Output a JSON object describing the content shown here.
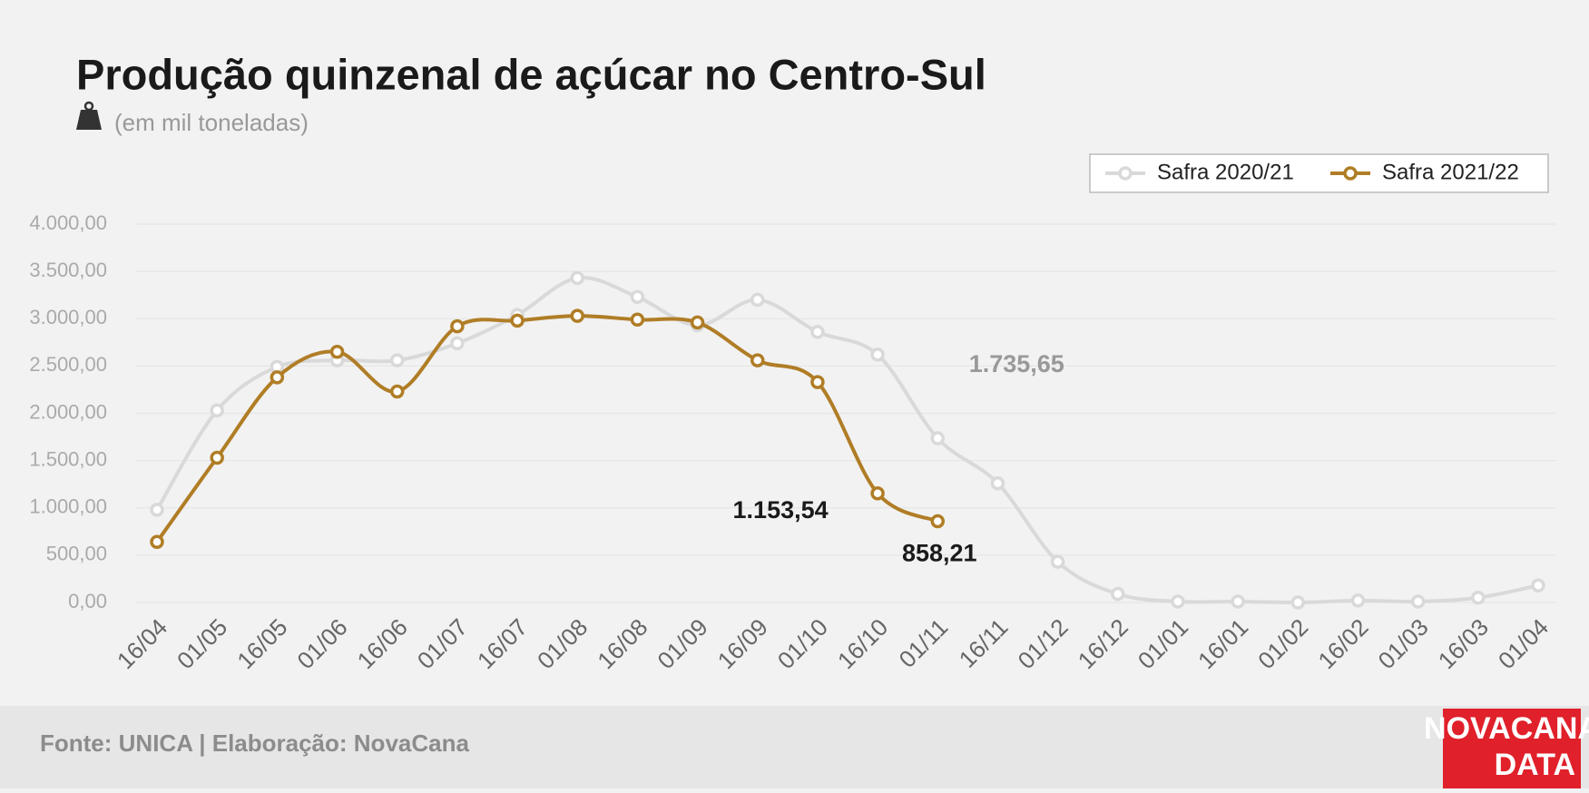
{
  "chart_data": {
    "type": "line",
    "title": "Produção quinzenal de açúcar no Centro-Sul",
    "subtitle": "(em mil toneladas)",
    "source": "Fonte: UNICA | Elaboração: NovaCana",
    "logo": [
      "NOVACANA",
      "DATA"
    ],
    "categories": [
      "16/04",
      "01/05",
      "16/05",
      "01/06",
      "16/06",
      "01/07",
      "16/07",
      "01/08",
      "16/08",
      "01/09",
      "16/09",
      "01/10",
      "16/10",
      "01/11",
      "16/11",
      "01/12",
      "16/12",
      "01/01",
      "16/01",
      "01/02",
      "16/02",
      "01/03",
      "16/03",
      "01/04"
    ],
    "series": [
      {
        "name": "Safra 2020/21",
        "color": "#d9d9d9",
        "label_color": "#999999",
        "values": [
          980,
          2030,
          2490,
          2560,
          2560,
          2740,
          3040,
          3430,
          3230,
          2930,
          3200,
          2860,
          2620,
          1735.65,
          1260,
          430,
          90,
          10,
          10,
          0,
          20,
          10,
          50,
          180
        ],
        "value_labels": [
          null,
          null,
          null,
          null,
          null,
          null,
          null,
          null,
          null,
          null,
          null,
          null,
          null,
          "1.735,65",
          null,
          null,
          null,
          null,
          null,
          null,
          null,
          null,
          null,
          null
        ]
      },
      {
        "name": "Safra 2021/22",
        "color": "#b07d26",
        "label_color": "#1a1a1a",
        "values": [
          640,
          1530,
          2380,
          2650,
          2230,
          2920,
          2980,
          3030,
          2990,
          2960,
          2560,
          2330,
          1153.54,
          858.21,
          null,
          null,
          null,
          null,
          null,
          null,
          null,
          null,
          null,
          null
        ],
        "value_labels": [
          null,
          null,
          null,
          null,
          null,
          null,
          null,
          null,
          null,
          null,
          null,
          null,
          "1.153,54",
          "858,21",
          null,
          null,
          null,
          null,
          null,
          null,
          null,
          null,
          null,
          null
        ]
      }
    ],
    "ylim": [
      0,
      4000
    ],
    "yticks": [
      {
        "value": 0,
        "label": "0,00"
      },
      {
        "value": 500,
        "label": "500,00"
      },
      {
        "value": 1000,
        "label": "1.000,00"
      },
      {
        "value": 1500,
        "label": "1.500,00"
      },
      {
        "value": 2000,
        "label": "2.000,00"
      },
      {
        "value": 2500,
        "label": "2.500,00"
      },
      {
        "value": 3000,
        "label": "3.000,00"
      },
      {
        "value": 3500,
        "label": "3.500,00"
      },
      {
        "value": 4000,
        "label": "4.000,00"
      }
    ],
    "grid": true,
    "legend": "top-right"
  }
}
